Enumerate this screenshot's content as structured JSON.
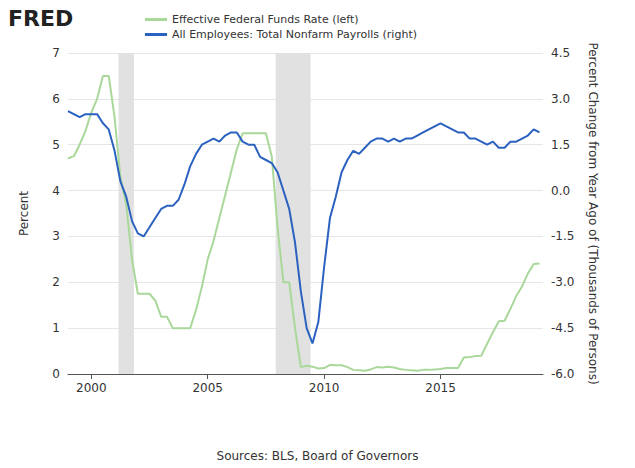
{
  "chart_data": {
    "type": "line",
    "logo": "FRED",
    "source": "Sources: BLS, Board of Governors",
    "ylabel": "Percent",
    "y2label": "Percent Change from Year Ago of (Thousands of Persons)",
    "grid": true,
    "legend": "top",
    "xlim": [
      1999,
      2019.4
    ],
    "xticks": [
      2000,
      2005,
      2010,
      2015
    ],
    "ylim": [
      0,
      7
    ],
    "yticks": [
      0,
      1,
      2,
      3,
      4,
      5,
      6,
      7
    ],
    "y2lim": [
      -6,
      4.5
    ],
    "y2ticks": [
      {
        "value": -6,
        "label": "-6.0"
      },
      -4.5,
      {
        "value": -3,
        "label": "-3.0"
      },
      -1.5,
      {
        "value": 0,
        "label": "0.0"
      },
      1.5,
      {
        "value": 3,
        "label": "3.0"
      },
      4.5
    ],
    "recessions": [
      [
        2001.17,
        2001.83
      ],
      [
        2007.92,
        2009.42
      ]
    ],
    "x": [
      1999,
      1999.25,
      1999.5,
      1999.75,
      2000,
      2000.25,
      2000.5,
      2000.75,
      2001,
      2001.25,
      2001.5,
      2001.75,
      2002,
      2002.25,
      2002.5,
      2002.75,
      2003,
      2003.25,
      2003.5,
      2003.75,
      2004,
      2004.25,
      2004.5,
      2004.75,
      2005,
      2005.25,
      2005.5,
      2005.75,
      2006,
      2006.25,
      2006.5,
      2006.75,
      2007,
      2007.25,
      2007.5,
      2007.75,
      2008,
      2008.25,
      2008.5,
      2008.75,
      2009,
      2009.25,
      2009.5,
      2009.75,
      2010,
      2010.25,
      2010.5,
      2010.75,
      2011,
      2011.25,
      2011.5,
      2011.75,
      2012,
      2012.25,
      2012.5,
      2012.75,
      2013,
      2013.25,
      2013.5,
      2013.75,
      2014,
      2014.25,
      2014.5,
      2014.75,
      2015,
      2015.25,
      2015.5,
      2015.75,
      2016,
      2016.25,
      2016.5,
      2016.75,
      2017,
      2017.25,
      2017.5,
      2017.75,
      2018,
      2018.25,
      2018.5,
      2018.75,
      2019,
      2019.25
    ],
    "series": [
      {
        "name": "Effective Federal Funds Rate (left)",
        "color": "#a9d89a",
        "axis": "y",
        "values": [
          4.7,
          4.75,
          5.0,
          5.3,
          5.7,
          6.0,
          6.5,
          6.5,
          5.6,
          4.3,
          3.7,
          2.5,
          1.75,
          1.75,
          1.75,
          1.6,
          1.25,
          1.25,
          1.0,
          1.0,
          1.0,
          1.0,
          1.4,
          1.9,
          2.5,
          2.9,
          3.4,
          3.9,
          4.4,
          4.9,
          5.25,
          5.25,
          5.25,
          5.25,
          5.25,
          4.75,
          3.2,
          2.0,
          2.0,
          1.0,
          0.15,
          0.18,
          0.16,
          0.12,
          0.13,
          0.2,
          0.19,
          0.19,
          0.15,
          0.09,
          0.08,
          0.07,
          0.1,
          0.15,
          0.14,
          0.16,
          0.14,
          0.11,
          0.09,
          0.08,
          0.07,
          0.09,
          0.09,
          0.1,
          0.11,
          0.13,
          0.13,
          0.13,
          0.36,
          0.37,
          0.39,
          0.4,
          0.66,
          0.91,
          1.15,
          1.16,
          1.42,
          1.7,
          1.91,
          2.19,
          2.4,
          2.41
        ]
      },
      {
        "name": "All Employees: Total Nonfarm Payrolls (right)",
        "color": "#2b62c0",
        "axis": "y2",
        "values": [
          2.6,
          2.5,
          2.4,
          2.5,
          2.5,
          2.5,
          2.2,
          2.0,
          1.3,
          0.3,
          -0.2,
          -1.0,
          -1.4,
          -1.5,
          -1.2,
          -0.9,
          -0.6,
          -0.5,
          -0.5,
          -0.3,
          0.2,
          0.8,
          1.2,
          1.5,
          1.6,
          1.7,
          1.6,
          1.8,
          1.9,
          1.9,
          1.6,
          1.5,
          1.5,
          1.1,
          1.0,
          0.9,
          0.6,
          0.0,
          -0.6,
          -1.7,
          -3.3,
          -4.5,
          -5.0,
          -4.3,
          -2.5,
          -0.9,
          -0.2,
          0.6,
          1.0,
          1.3,
          1.2,
          1.4,
          1.6,
          1.7,
          1.7,
          1.6,
          1.7,
          1.6,
          1.7,
          1.7,
          1.8,
          1.9,
          2.0,
          2.1,
          2.2,
          2.1,
          2.0,
          1.9,
          1.9,
          1.7,
          1.7,
          1.6,
          1.5,
          1.6,
          1.4,
          1.4,
          1.6,
          1.6,
          1.7,
          1.8,
          2.0,
          1.9
        ]
      }
    ]
  }
}
